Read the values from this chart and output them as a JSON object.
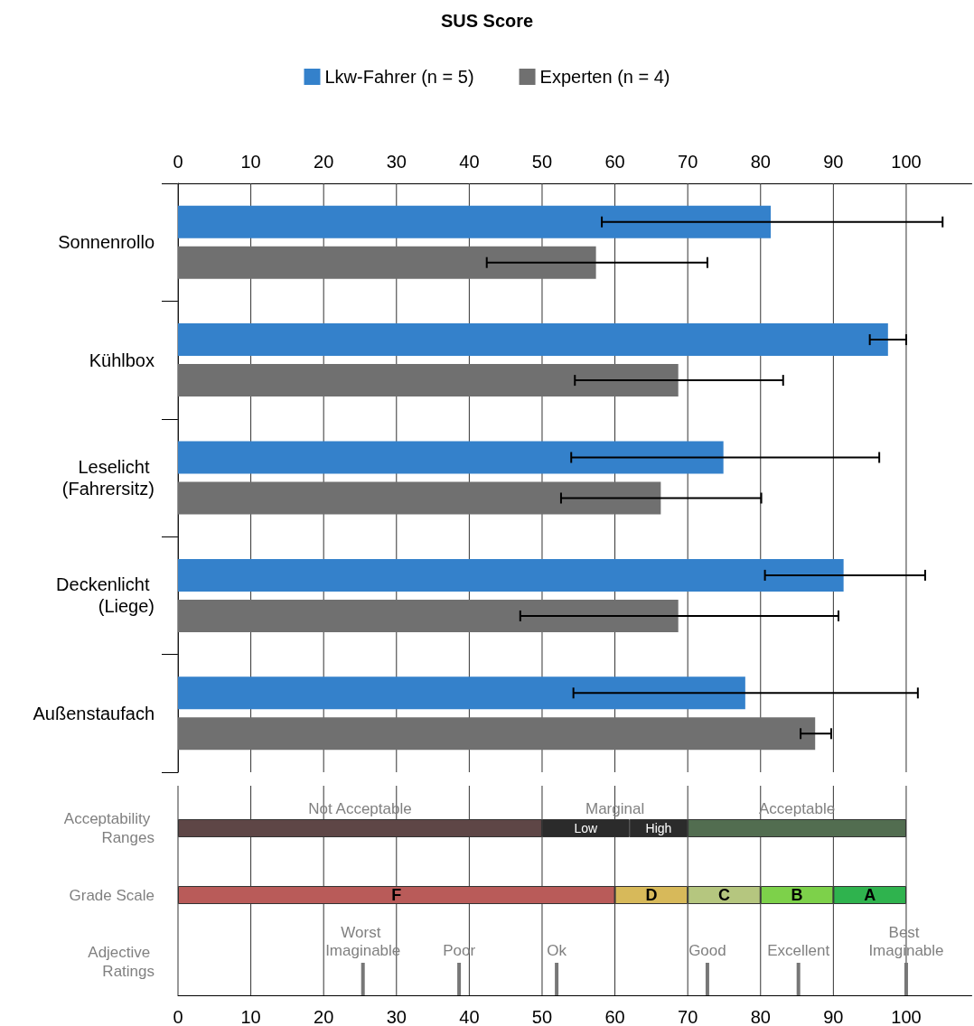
{
  "chart_data": [
    {
      "type": "bar",
      "title": "SUS Score",
      "orientation": "horizontal",
      "legend": "top",
      "grid": "x",
      "tick_labels": "xy",
      "categories": [
        "Sonnenrollo",
        "Kühlbox",
        "Leselicht (Fahrersitz)",
        "Deckenlicht (Liege)",
        "Außenstaufach"
      ],
      "xlim": [
        0,
        109
      ],
      "xticks": [
        0,
        10,
        20,
        30,
        40,
        50,
        60,
        70,
        80,
        90,
        100
      ],
      "series": [
        {
          "name": "Lkw-Fahrer (n = 5)",
          "color": "#3481cb",
          "values": [
            81.4,
            97.5,
            74.9,
            91.4,
            77.9
          ],
          "errors": [
            [
              58.2,
              105
            ],
            [
              95,
              100
            ],
            [
              54,
              96.3
            ],
            [
              80.6,
              102.6
            ],
            [
              54.3,
              101.6
            ]
          ]
        },
        {
          "name": "Experten (n = 4)",
          "color": "#707070",
          "values": [
            57.4,
            68.7,
            66.3,
            68.7,
            87.5
          ],
          "errors": [
            [
              42.4,
              72.7
            ],
            [
              54.5,
              83.1
            ],
            [
              52.6,
              80.1
            ],
            [
              47,
              90.7
            ],
            [
              85.5,
              89.7
            ]
          ]
        }
      ]
    },
    {
      "type": "bar",
      "orientation": "horizontal",
      "stacked": true,
      "grid": "x",
      "categories": [
        "Acceptability Ranges",
        "Grade Scale",
        "Adjective Ratings"
      ],
      "xlim": [
        0,
        109
      ],
      "xticks": [
        0,
        10,
        20,
        30,
        40,
        50,
        60,
        70,
        80,
        90,
        100
      ],
      "series": [
        {
          "name": "Not Acceptable",
          "color": "#5e4646",
          "values": [
            50,
            null,
            null
          ]
        },
        {
          "color": "#2b2b2b",
          "values": [
            12,
            null,
            null
          ],
          "value_labels": [
            "Low",
            null,
            null
          ]
        },
        {
          "color": "#2b2b2b",
          "values": [
            8,
            null,
            null
          ],
          "value_labels": [
            "High",
            null,
            null
          ]
        },
        {
          "name": "Acceptable",
          "color": "#526d50",
          "values": [
            30,
            null,
            null
          ]
        },
        {
          "color": "#b95b59",
          "values": [
            null,
            60,
            null
          ],
          "value_labels": [
            null,
            "F",
            null
          ]
        },
        {
          "color": "#d7b95a",
          "values": [
            null,
            10,
            null
          ],
          "value_labels": [
            null,
            "D",
            null
          ]
        },
        {
          "color": "#b5c67f",
          "values": [
            null,
            10,
            null
          ],
          "value_labels": [
            null,
            "C",
            null
          ]
        },
        {
          "color": "#7dd14a",
          "values": [
            null,
            10,
            null
          ],
          "value_labels": [
            null,
            "B",
            null
          ]
        },
        {
          "color": "#2fb34e",
          "values": [
            null,
            10,
            null
          ],
          "value_labels": [
            null,
            "A",
            null
          ]
        }
      ],
      "annotations": [
        "Marginal"
      ],
      "ref_lines": [
        {
          "axis": "x",
          "value": 25.4,
          "label": "Worst Imaginable",
          "color": "#777777"
        },
        {
          "axis": "x",
          "value": 38.6,
          "label": "Poor",
          "color": "#777777"
        },
        {
          "axis": "x",
          "value": 52,
          "label": "Ok",
          "color": "#777777"
        },
        {
          "axis": "x",
          "value": 72.7,
          "label": "Good",
          "color": "#777777"
        },
        {
          "axis": "x",
          "value": 85.2,
          "label": "Excellent",
          "color": "#777777"
        },
        {
          "axis": "x",
          "value": 100,
          "label": "Best Imaginable",
          "color": "#777777"
        }
      ]
    }
  ]
}
